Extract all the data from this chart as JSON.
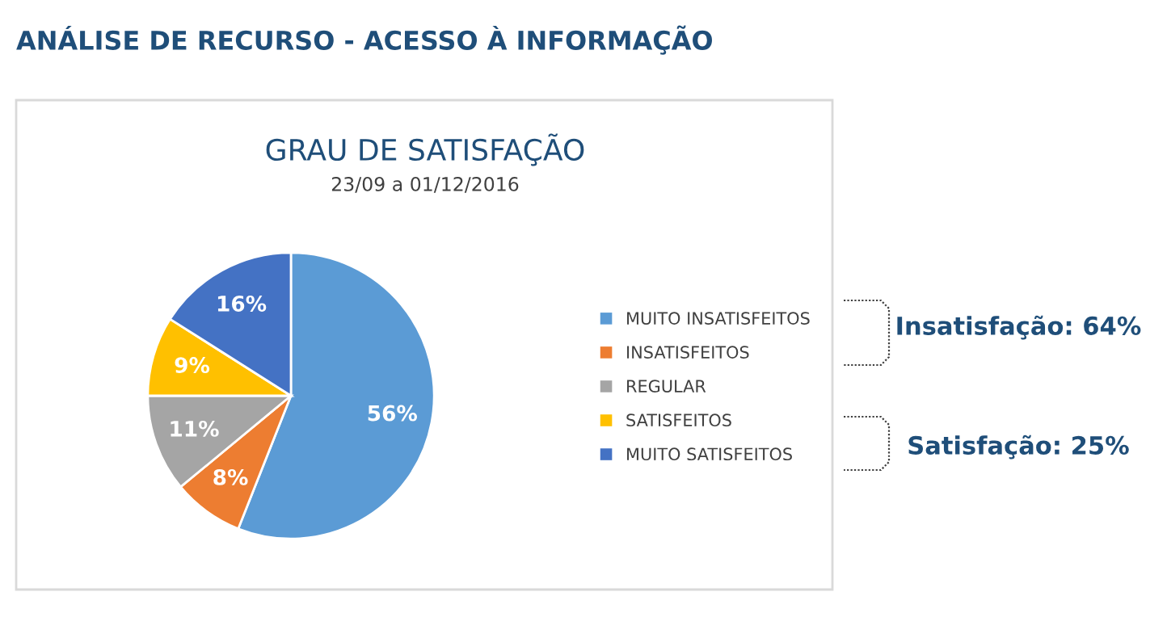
{
  "chart_data": {
    "type": "pie",
    "title": "GRAU DE SATISFAÇÃO",
    "subtitle": "23/09 a 01/12/2016",
    "categories": [
      "MUITO INSATISFEITOS",
      "INSATISFEITOS",
      "REGULAR",
      "SATISFEITOS",
      "MUITO SATISFEITOS"
    ],
    "values": [
      56,
      8,
      11,
      9,
      16
    ],
    "colors": [
      "#5b9bd5",
      "#ed7d31",
      "#a5a5a5",
      "#ffc000",
      "#4472c4"
    ],
    "value_labels": [
      "56%",
      "8%",
      "11%",
      "9%",
      "16%"
    ],
    "legend": "right",
    "annotations": [
      "ANÁLISE DE RECURSO - ACESSO À INFORMAÇÃO",
      "Insatisfação: 64%",
      "Satisfação: 25%"
    ]
  }
}
